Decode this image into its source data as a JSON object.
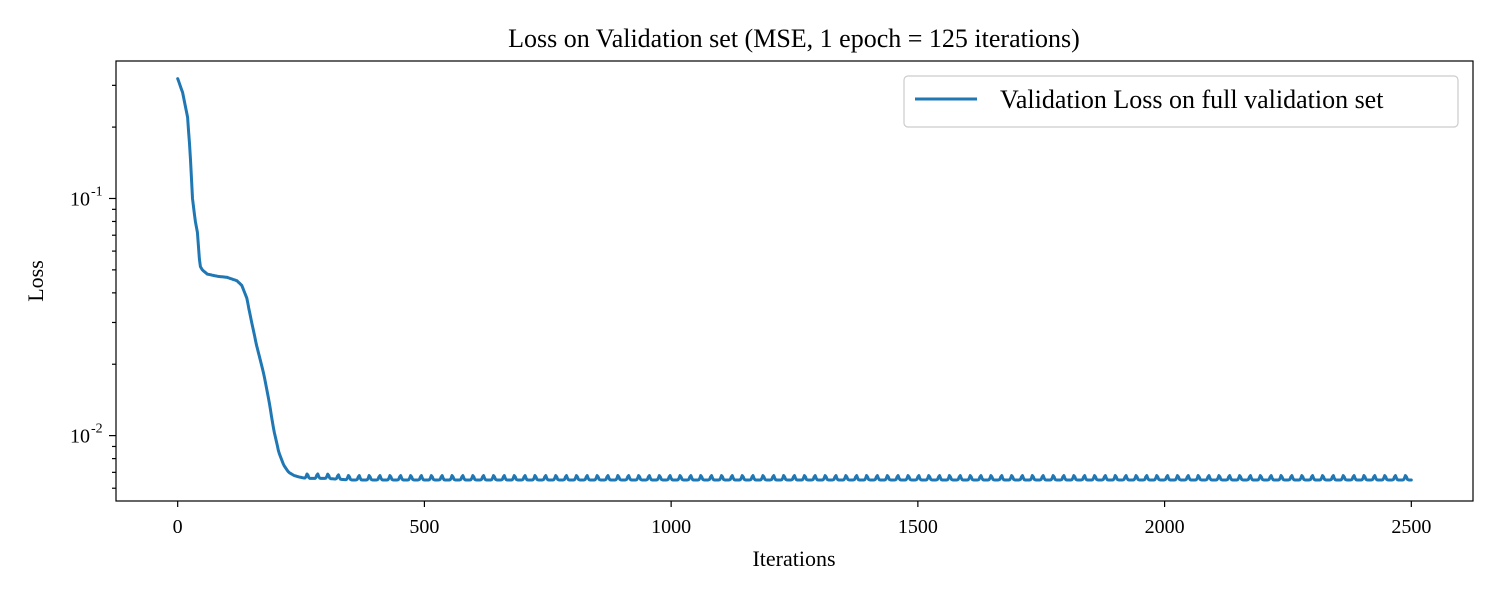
{
  "chart_data": {
    "type": "line",
    "title": "Loss on Validation set    (MSE, 1 epoch = 125 iterations)",
    "xlabel": "Iterations",
    "ylabel": "Loss",
    "xlim": [
      -125,
      2625
    ],
    "ylim": [
      0.0053,
      0.38
    ],
    "yscale": "log",
    "xticks": [
      0,
      500,
      1000,
      1500,
      2000,
      2500
    ],
    "xtick_labels": [
      "0",
      "500",
      "1000",
      "1500",
      "2000",
      "2500"
    ],
    "yticks": [
      {
        "value": 0.1,
        "base": "10",
        "exp": "-1"
      },
      {
        "value": 0.01,
        "base": "10",
        "exp": "-2"
      }
    ],
    "grid": false,
    "legend": {
      "position": "top-right",
      "entries": [
        "Validation Loss on full validation set"
      ]
    },
    "series": [
      {
        "name": "Validation Loss on full validation set",
        "color": "#1f77b4",
        "x": [
          0,
          10,
          20,
          25,
          30,
          35,
          40,
          45,
          50,
          60,
          80,
          100,
          120,
          130,
          140,
          150,
          160,
          175,
          185,
          195,
          205,
          215,
          225,
          235,
          245,
          260,
          280,
          300,
          350,
          400,
          500,
          600,
          700,
          800,
          900,
          1000,
          1100,
          1200,
          1300,
          1400,
          1500,
          1600,
          1700,
          1800,
          1900,
          2000,
          2100,
          2200,
          2300,
          2400,
          2500
        ],
        "y": [
          0.32,
          0.28,
          0.22,
          0.16,
          0.1,
          0.082,
          0.072,
          0.052,
          0.05,
          0.048,
          0.047,
          0.0465,
          0.045,
          0.043,
          0.038,
          0.03,
          0.024,
          0.018,
          0.014,
          0.0105,
          0.0085,
          0.0075,
          0.007,
          0.0068,
          0.0067,
          0.0066,
          0.0066,
          0.0066,
          0.0065,
          0.0065,
          0.0065,
          0.0065,
          0.0065,
          0.0065,
          0.0065,
          0.0065,
          0.0065,
          0.0065,
          0.0065,
          0.0065,
          0.0065,
          0.0065,
          0.0065,
          0.0065,
          0.0065,
          0.0065,
          0.0065,
          0.0065,
          0.0065,
          0.0065,
          0.0065
        ]
      }
    ]
  }
}
